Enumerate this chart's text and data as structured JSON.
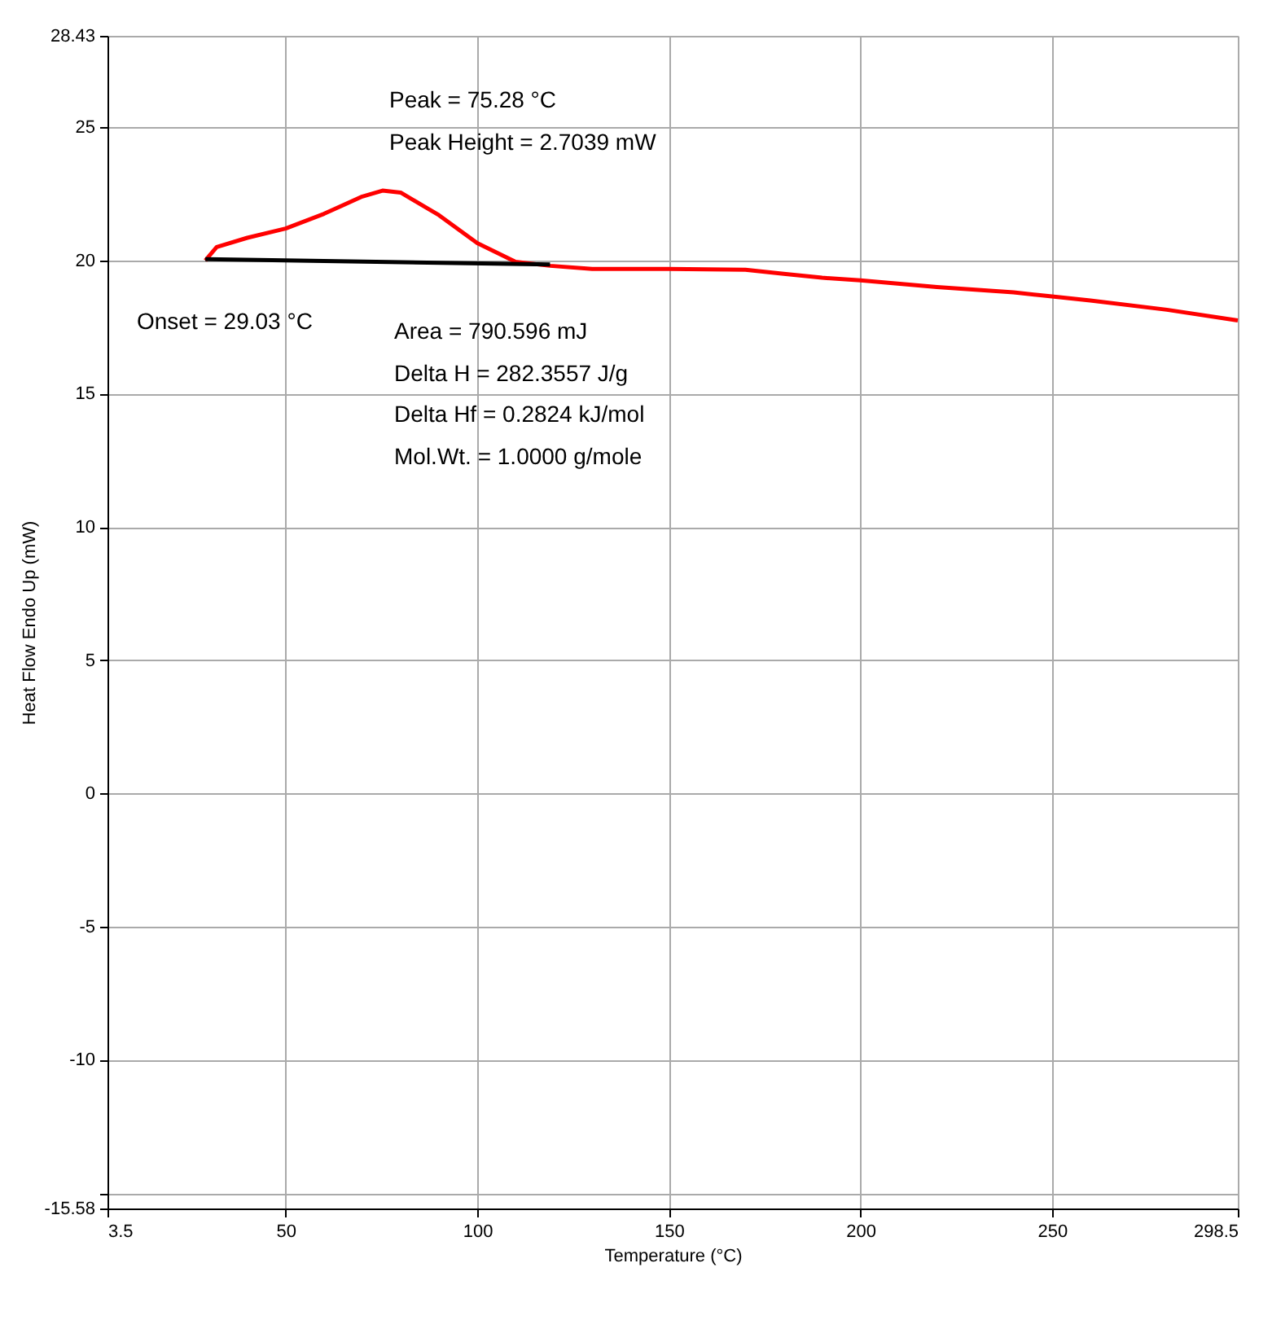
{
  "chart_data": {
    "type": "line",
    "xlabel": "Temperature (°C)",
    "ylabel": "Heat Flow Endo Up (mW)",
    "xlim": [
      3.5,
      298.5
    ],
    "xticks": [
      3.5,
      50,
      100,
      150,
      200,
      250,
      298.5
    ],
    "ylim": [
      -15.58,
      28.43
    ],
    "yticks": [
      {
        "value": -15.58,
        "label": "-15.58"
      },
      {
        "value": -15,
        "label": null
      },
      -10,
      -5,
      0,
      5,
      10,
      15,
      20,
      25,
      28.43
    ],
    "grid": true,
    "line_style": "solid",
    "marker": "none",
    "series": [
      {
        "color": "#ff0000",
        "x": [
          29.03,
          32,
          40,
          50,
          60,
          70,
          75.28,
          80,
          90,
          100,
          110,
          119,
          130,
          150,
          170,
          180,
          190,
          200,
          220,
          240,
          250,
          260,
          280,
          298.5
        ],
        "values": [
          20.0,
          20.5,
          20.85,
          21.2,
          21.75,
          22.4,
          22.62,
          22.55,
          21.7,
          20.65,
          19.95,
          19.8,
          19.68,
          19.68,
          19.65,
          19.5,
          19.35,
          19.25,
          19.0,
          18.8,
          18.65,
          18.5,
          18.15,
          17.75
        ]
      },
      {
        "color": "#000000",
        "x": [
          29.03,
          119
        ],
        "values": [
          20.05,
          19.85
        ]
      }
    ],
    "annotations": [
      "Peak = 75.28 °C",
      "Peak Height = 2.7039 mW",
      "Onset = 29.03 °C",
      "Area = 790.596 mJ",
      "Delta H = 282.3557 J/g",
      "Delta Hf = 0.2824 kJ/mol",
      "Mol.Wt. = 1.0000 g/mole"
    ]
  }
}
